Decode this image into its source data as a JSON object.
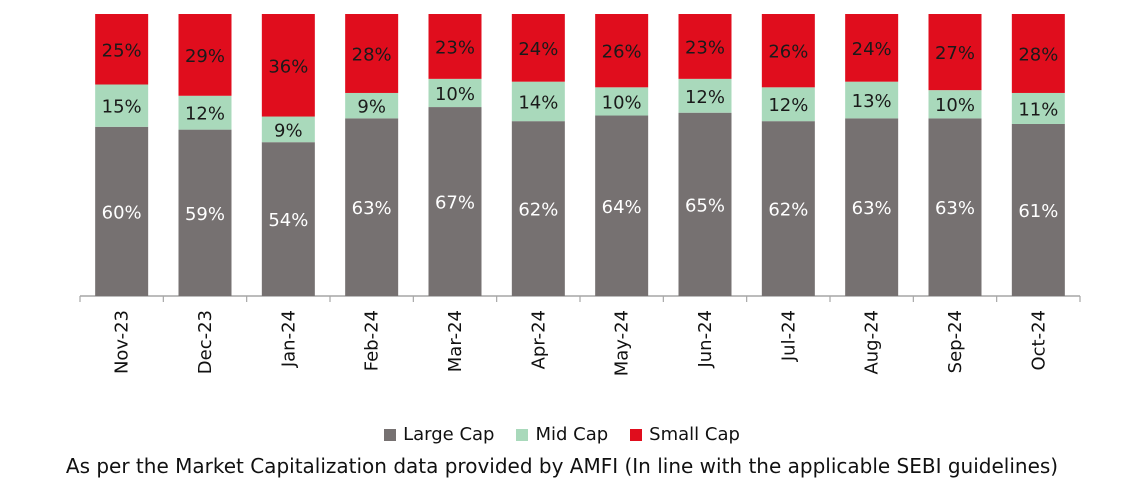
{
  "chart_data": {
    "type": "bar",
    "stacked": true,
    "normalized": true,
    "categories": [
      "Nov-23",
      "Dec-23",
      "Jan-24",
      "Feb-24",
      "Mar-24",
      "Apr-24",
      "May-24",
      "Jun-24",
      "Jul-24",
      "Aug-24",
      "Sep-24",
      "Oct-24"
    ],
    "series": [
      {
        "name": "Large Cap",
        "color": "#767171",
        "values": [
          60,
          59,
          54,
          63,
          67,
          62,
          64,
          65,
          62,
          63,
          63,
          61
        ]
      },
      {
        "name": "Mid Cap",
        "color": "#a9d9bb",
        "values": [
          15,
          12,
          9,
          9,
          10,
          14,
          10,
          12,
          12,
          13,
          10,
          11
        ]
      },
      {
        "name": "Small Cap",
        "color": "#e00d1d",
        "values": [
          25,
          29,
          36,
          28,
          23,
          24,
          26,
          23,
          26,
          24,
          27,
          28
        ]
      }
    ],
    "value_suffix": "%",
    "legend_position": "bottom",
    "grid": false
  },
  "footnote": "As per the Market Capitalization data provided by AMFI (In line with the applicable SEBI guidelines)"
}
